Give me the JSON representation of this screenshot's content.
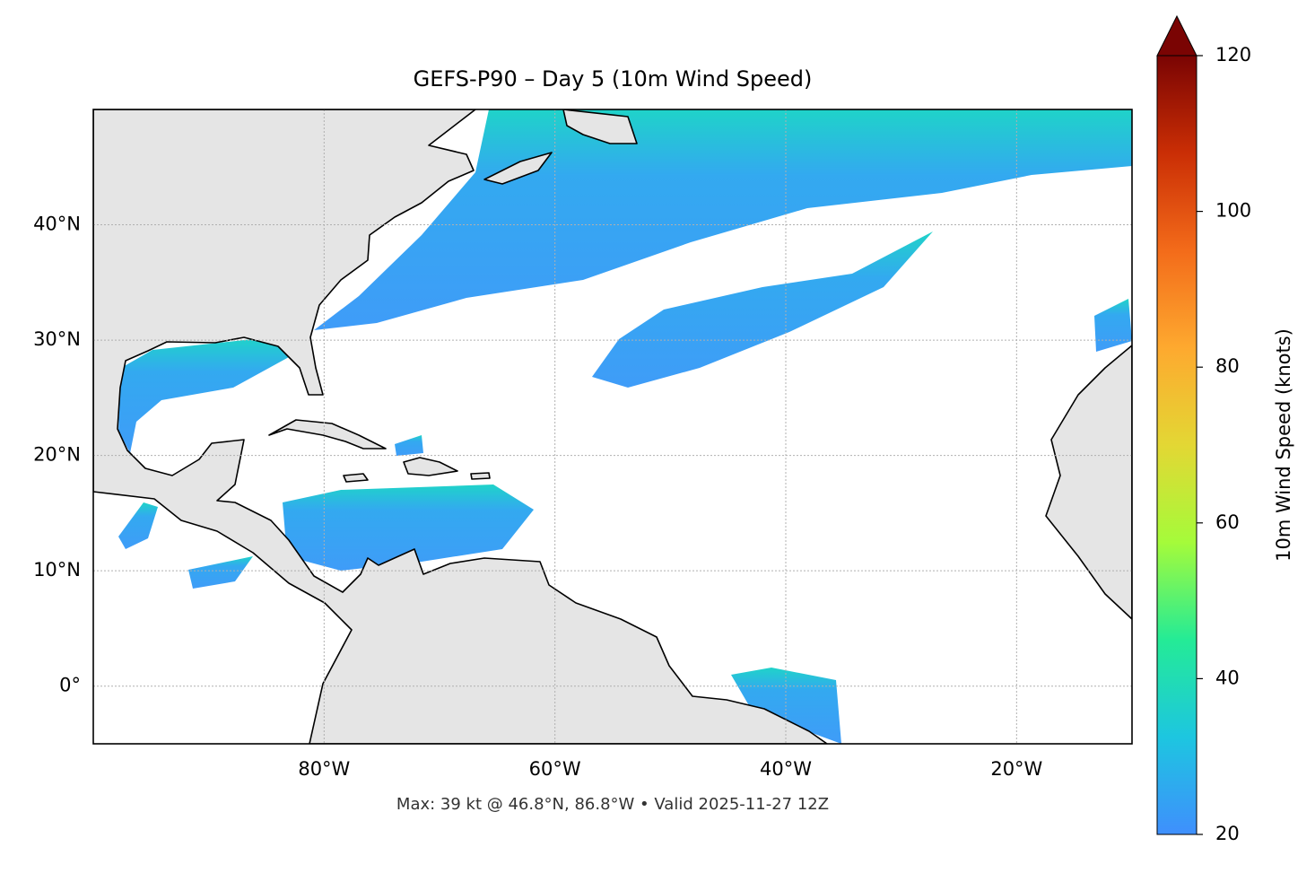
{
  "chart_data": {
    "type": "map",
    "title": "GEFS-P90 – Day 5 (10m Wind Speed)",
    "subtitle": "Max: 39 kt @ 46.8°N, 86.8°W • Valid 2025-11-27 12Z",
    "xlim": [
      -100,
      -10
    ],
    "ylim": [
      -5,
      50
    ],
    "xticks": [
      {
        "value": -80,
        "label": "80°W"
      },
      {
        "value": -60,
        "label": "60°W"
      },
      {
        "value": -40,
        "label": "40°W"
      },
      {
        "value": -20,
        "label": "20°W"
      }
    ],
    "yticks": [
      {
        "value": 0,
        "label": "0°"
      },
      {
        "value": 10,
        "label": "10°N"
      },
      {
        "value": 20,
        "label": "20°N"
      },
      {
        "value": 30,
        "label": "30°N"
      },
      {
        "value": 40,
        "label": "40°N"
      }
    ],
    "grid": true,
    "colorbar": {
      "label": "10m Wind Speed (knots)",
      "lim": [
        20,
        120
      ],
      "ticks": [
        20,
        40,
        60,
        80,
        100,
        120
      ],
      "colormap": [
        "#3f8ffd",
        "#1dc6e0",
        "#24eb96",
        "#a5fb3a",
        "#e3d734",
        "#fea92f",
        "#f36b1a",
        "#ca2e05",
        "#7a0403"
      ]
    }
  }
}
